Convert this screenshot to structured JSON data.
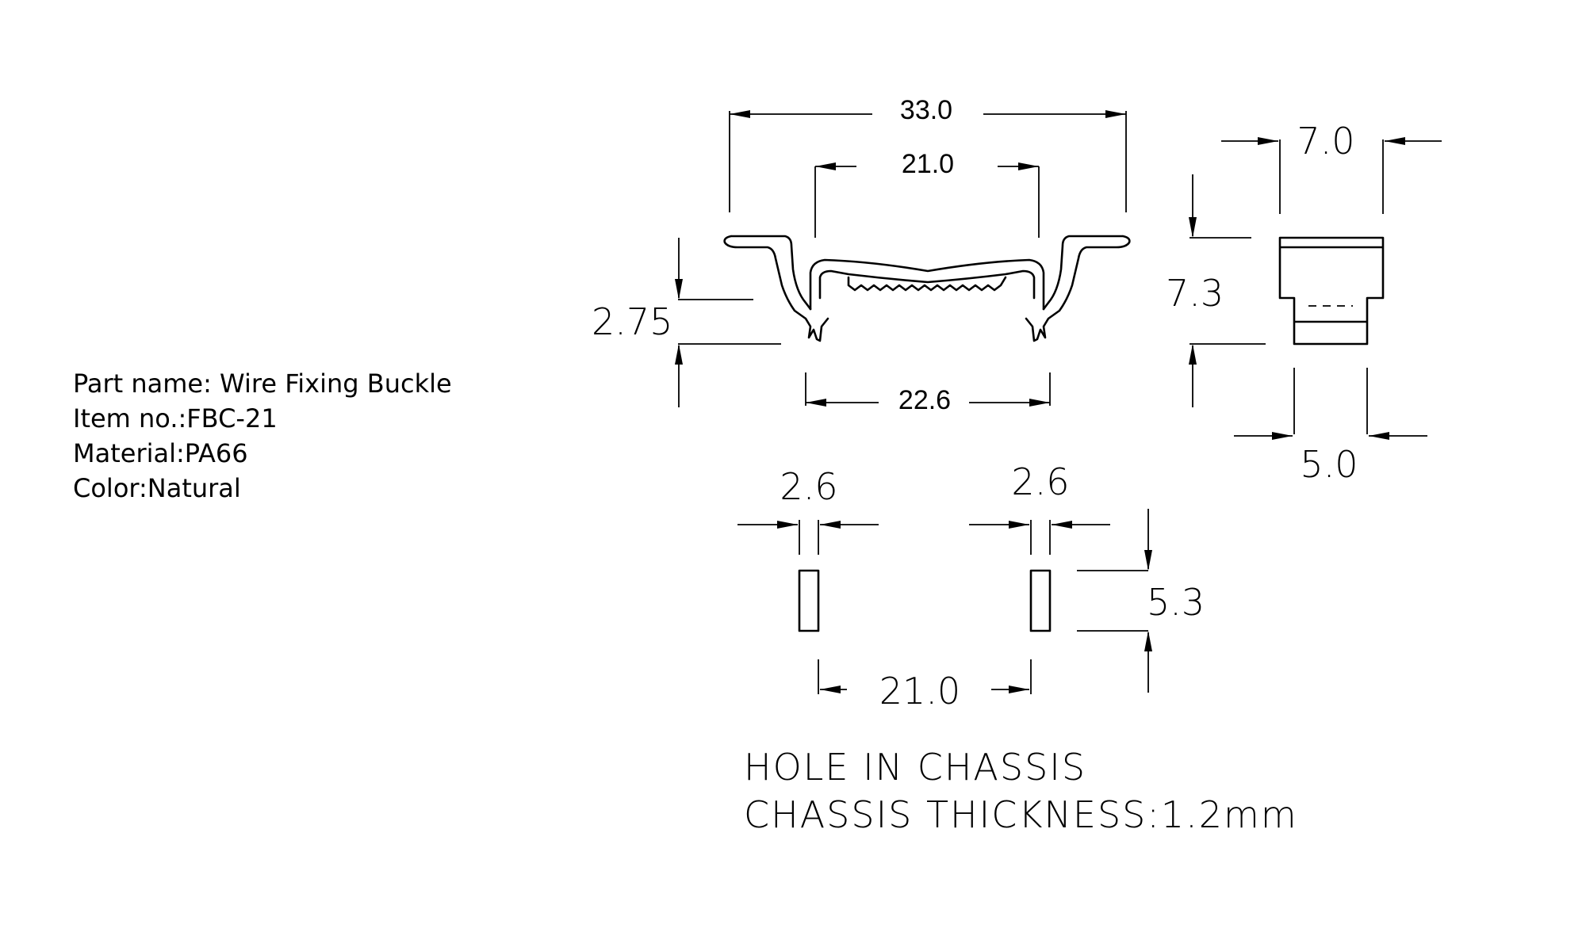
{
  "specs": {
    "part_name": "Part name: Wire Fixing Buckle",
    "item_no": "Item no.:FBC-21",
    "material": "Material:PA66",
    "color": "Color:Natural"
  },
  "dimensions": {
    "overall_width": "33.0",
    "inner_width": "21.0",
    "leg_spacing": "22.6",
    "leg_height": "2.75",
    "side_width": "7.0",
    "side_height": "7.3",
    "side_base": "5.0",
    "hole_width_left": "2.6",
    "hole_width_right": "2.6",
    "hole_height": "5.3",
    "hole_spacing": "21.0"
  },
  "notes": {
    "line1": "HOLE IN CHASSIS",
    "line2": "CHASSIS THICKNESS:1.2mm"
  }
}
